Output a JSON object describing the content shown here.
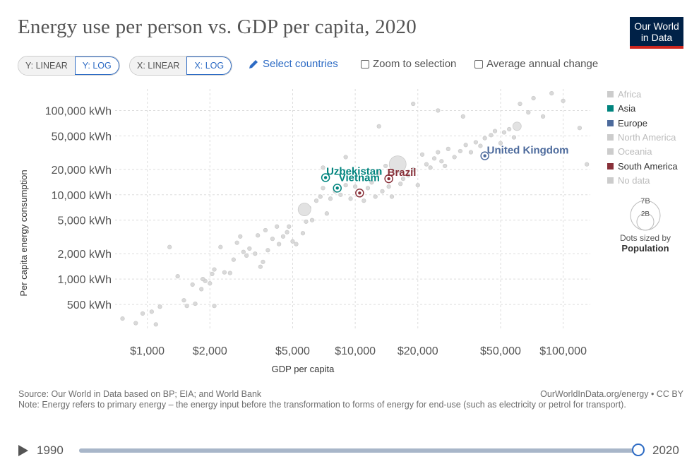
{
  "header": {
    "title": "Energy use per person vs. GDP per capita, 2020",
    "logo_line1": "Our World",
    "logo_line2": "in Data"
  },
  "controls": {
    "y_linear": "Y: LINEAR",
    "y_log": "Y: LOG",
    "x_linear": "X: LINEAR",
    "x_log": "X: LOG",
    "select_countries": "Select countries",
    "zoom": "Zoom to selection",
    "avg_change": "Average annual change"
  },
  "legend": {
    "items": [
      {
        "label": "Africa",
        "color": "#cccccc",
        "active": false
      },
      {
        "label": "Asia",
        "color": "#00847e",
        "active": true
      },
      {
        "label": "Europe",
        "color": "#4c6a9c",
        "active": true
      },
      {
        "label": "North America",
        "color": "#cccccc",
        "active": false
      },
      {
        "label": "Oceania",
        "color": "#cccccc",
        "active": false
      },
      {
        "label": "South America",
        "color": "#883039",
        "active": true
      },
      {
        "label": "No data",
        "color": "#cccccc",
        "active": false
      }
    ],
    "size_big": "7B",
    "size_small": "2B",
    "sized_by": "Dots sized by",
    "sized_metric": "Population"
  },
  "chart_data": {
    "type": "scatter",
    "title": "Energy use per person vs. GDP per capita, 2020",
    "xlabel": "GDP per capita",
    "ylabel": "Per capita energy consumption",
    "xscale": "log",
    "yscale": "log",
    "xlim": [
      700,
      135000
    ],
    "ylim": [
      250,
      180000
    ],
    "x_ticks": [
      1000,
      2000,
      5000,
      10000,
      20000,
      50000,
      100000
    ],
    "x_tick_labels": [
      "$1,000",
      "$2,000",
      "$5,000",
      "$10,000",
      "$20,000",
      "$50,000",
      "$100,000"
    ],
    "y_ticks": [
      500,
      1000,
      2000,
      5000,
      10000,
      20000,
      50000,
      100000
    ],
    "y_tick_labels": [
      "500 kWh",
      "1,000 kWh",
      "2,000 kWh",
      "5,000 kWh",
      "10,000 kWh",
      "20,000 kWh",
      "50,000 kWh",
      "100,000 kWh"
    ],
    "highlighted": [
      {
        "name": "United Kingdom",
        "x": 42000,
        "y": 29000,
        "color": "#4c6a9c",
        "continent": "Europe"
      },
      {
        "name": "Uzbekistan",
        "x": 7200,
        "y": 16000,
        "color": "#00847e",
        "continent": "Asia"
      },
      {
        "name": "Vietnam",
        "x": 8200,
        "y": 12000,
        "color": "#00847e",
        "continent": "Asia"
      },
      {
        "name": "Brazil",
        "x": 14500,
        "y": 15500,
        "color": "#883039",
        "continent": "South America"
      },
      {
        "name": "",
        "x": 10500,
        "y": 10500,
        "color": "#883039",
        "continent": "South America"
      }
    ],
    "background_points": [
      [
        760,
        340
      ],
      [
        880,
        300
      ],
      [
        950,
        390
      ],
      [
        1050,
        410
      ],
      [
        1100,
        290
      ],
      [
        1150,
        470
      ],
      [
        1280,
        2400
      ],
      [
        1400,
        1080
      ],
      [
        1500,
        560
      ],
      [
        1550,
        480
      ],
      [
        1650,
        860
      ],
      [
        1700,
        510
      ],
      [
        1820,
        760
      ],
      [
        1900,
        950
      ],
      [
        2000,
        890
      ],
      [
        2050,
        1150
      ],
      [
        2100,
        1300
      ],
      [
        2100,
        480
      ],
      [
        2250,
        2400
      ],
      [
        2350,
        1200
      ],
      [
        2500,
        1180
      ],
      [
        2600,
        1700
      ],
      [
        2700,
        2700
      ],
      [
        2800,
        3200
      ],
      [
        3000,
        1900
      ],
      [
        3100,
        2300
      ],
      [
        3300,
        2000
      ],
      [
        3400,
        3300
      ],
      [
        3500,
        1400
      ],
      [
        3600,
        1600
      ],
      [
        3700,
        3800
      ],
      [
        3800,
        2200
      ],
      [
        4000,
        3000
      ],
      [
        4200,
        4200
      ],
      [
        4300,
        2600
      ],
      [
        4500,
        3200
      ],
      [
        4700,
        3600
      ],
      [
        5000,
        2800
      ],
      [
        5200,
        2600
      ],
      [
        5500,
        6500
      ],
      [
        5600,
        3500
      ],
      [
        5800,
        4800
      ],
      [
        6000,
        7000
      ],
      [
        6200,
        5000
      ],
      [
        6500,
        8500
      ],
      [
        6800,
        9500
      ],
      [
        7000,
        12000
      ],
      [
        7300,
        6000
      ],
      [
        7600,
        9000
      ],
      [
        8000,
        11000
      ],
      [
        8500,
        10000
      ],
      [
        9000,
        13000
      ],
      [
        9500,
        9000
      ],
      [
        10000,
        12500
      ],
      [
        11000,
        8500
      ],
      [
        11500,
        12000
      ],
      [
        12000,
        14000
      ],
      [
        12500,
        9500
      ],
      [
        13000,
        18000
      ],
      [
        13500,
        11000
      ],
      [
        14000,
        22000
      ],
      [
        14500,
        12500
      ],
      [
        15000,
        9500
      ],
      [
        15500,
        20000
      ],
      [
        16000,
        27000
      ],
      [
        16500,
        13500
      ],
      [
        17000,
        15500
      ],
      [
        18000,
        17000
      ],
      [
        19000,
        20000
      ],
      [
        20000,
        13000
      ],
      [
        21000,
        30000
      ],
      [
        22000,
        23000
      ],
      [
        23000,
        21000
      ],
      [
        24000,
        27000
      ],
      [
        25000,
        32000
      ],
      [
        26000,
        25000
      ],
      [
        27000,
        22000
      ],
      [
        28000,
        35000
      ],
      [
        30000,
        28000
      ],
      [
        32000,
        33000
      ],
      [
        34000,
        39000
      ],
      [
        36000,
        32000
      ],
      [
        38000,
        42000
      ],
      [
        40000,
        38000
      ],
      [
        42000,
        47000
      ],
      [
        45000,
        51000
      ],
      [
        47000,
        57000
      ],
      [
        50000,
        41000
      ],
      [
        52000,
        55000
      ],
      [
        55000,
        60000
      ],
      [
        58000,
        48000
      ],
      [
        60000,
        68000
      ],
      [
        62000,
        120000
      ],
      [
        68000,
        95000
      ],
      [
        72000,
        140000
      ],
      [
        80000,
        85000
      ],
      [
        88000,
        160000
      ],
      [
        100000,
        130000
      ],
      [
        120000,
        62000
      ],
      [
        130000,
        23000
      ],
      [
        19000,
        120000
      ],
      [
        25000,
        100000
      ],
      [
        33000,
        85000
      ],
      [
        13000,
        65000
      ],
      [
        9000,
        28000
      ],
      [
        7000,
        21000
      ],
      [
        4800,
        4200
      ],
      [
        2900,
        2100
      ],
      [
        1850,
        1000
      ]
    ],
    "big_bubbles": [
      {
        "x": 16000,
        "y": 23000,
        "r": 12
      },
      {
        "x": 5700,
        "y": 6700,
        "r": 9
      },
      {
        "x": 60000,
        "y": 65000,
        "r": 6
      }
    ]
  },
  "footer": {
    "source": "Source: Our World in Data based on BP; EIA; and World Bank",
    "credit": "OurWorldInData.org/energy • CC BY",
    "note": "Note: Energy refers to primary energy – the energy input before the transformation to forms of energy for end-use (such as electricity or petrol for transport)."
  },
  "timeline": {
    "start": "1990",
    "end": "2020",
    "progress": 1.0
  }
}
